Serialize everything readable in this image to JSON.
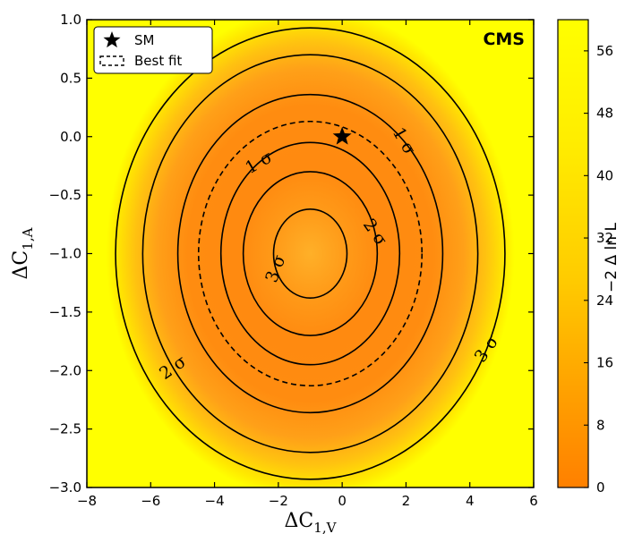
{
  "chart_data": {
    "type": "heatmap",
    "experiment_label": "CMS",
    "xlabel": "ΔC",
    "xlabel_sub": "1,V",
    "ylabel": "ΔC",
    "ylabel_sub": "1,A",
    "xlim": [
      -8,
      6
    ],
    "ylim": [
      -3.0,
      1.0
    ],
    "xticks": [
      -8,
      -6,
      -4,
      -2,
      0,
      2,
      4,
      6
    ],
    "xtick_labels": [
      "−8",
      "−6",
      "−4",
      "−2",
      "0",
      "2",
      "4",
      "6"
    ],
    "yticks": [
      -3.0,
      -2.5,
      -2.0,
      -1.5,
      -1.0,
      -0.5,
      0.0,
      0.5,
      1.0
    ],
    "ytick_labels": [
      "−3.0",
      "−2.5",
      "−2.0",
      "−1.5",
      "−1.0",
      "−0.5",
      "0.0",
      "0.5",
      "1.0"
    ],
    "colorbar": {
      "label": "−2 Δ ln L",
      "range": [
        0,
        60
      ],
      "ticks": [
        0,
        8,
        16,
        24,
        32,
        40,
        48,
        56
      ],
      "tick_labels": [
        "0",
        "8",
        "16",
        "24",
        "32",
        "40",
        "48",
        "56"
      ],
      "colors": {
        "low": "#ff8000",
        "mid": "#ffb000",
        "high": "#ffff00"
      }
    },
    "contours": [
      {
        "level_label": "3 σ",
        "cx": -1.0,
        "cy": -1.0,
        "rx": 1.15,
        "ry": 0.38,
        "style": "solid",
        "note": "inner"
      },
      {
        "level_label": "2 σ",
        "cx": -1.0,
        "cy": -1.0,
        "rx": 2.1,
        "ry": 0.7,
        "style": "solid",
        "note": "inner"
      },
      {
        "level_label": "1 σ",
        "cx": -1.0,
        "cy": -1.0,
        "rx": 2.8,
        "ry": 0.95,
        "style": "solid",
        "note": "inner"
      },
      {
        "level_label": "Best fit",
        "cx": -1.0,
        "cy": -1.0,
        "rx": 3.5,
        "ry": 1.13,
        "style": "dashed"
      },
      {
        "level_label": "1 σ",
        "cx": -1.0,
        "cy": -1.0,
        "rx": 4.15,
        "ry": 1.36,
        "style": "solid",
        "note": "outer"
      },
      {
        "level_label": "2 σ",
        "cx": -1.0,
        "cy": -1.0,
        "rx": 5.25,
        "ry": 1.7,
        "style": "solid",
        "note": "outer"
      },
      {
        "level_label": "3 σ",
        "cx": -1.0,
        "cy": -1.0,
        "rx": 6.1,
        "ry": 1.93,
        "style": "solid",
        "note": "outer"
      }
    ],
    "sm_point": {
      "x": 0.0,
      "y": 0.0,
      "label": "SM"
    },
    "legend": {
      "placement": "top-left",
      "entries": [
        {
          "label": "SM",
          "marker": "star"
        },
        {
          "label": "Best fit",
          "marker": "dashed-box"
        }
      ]
    }
  }
}
